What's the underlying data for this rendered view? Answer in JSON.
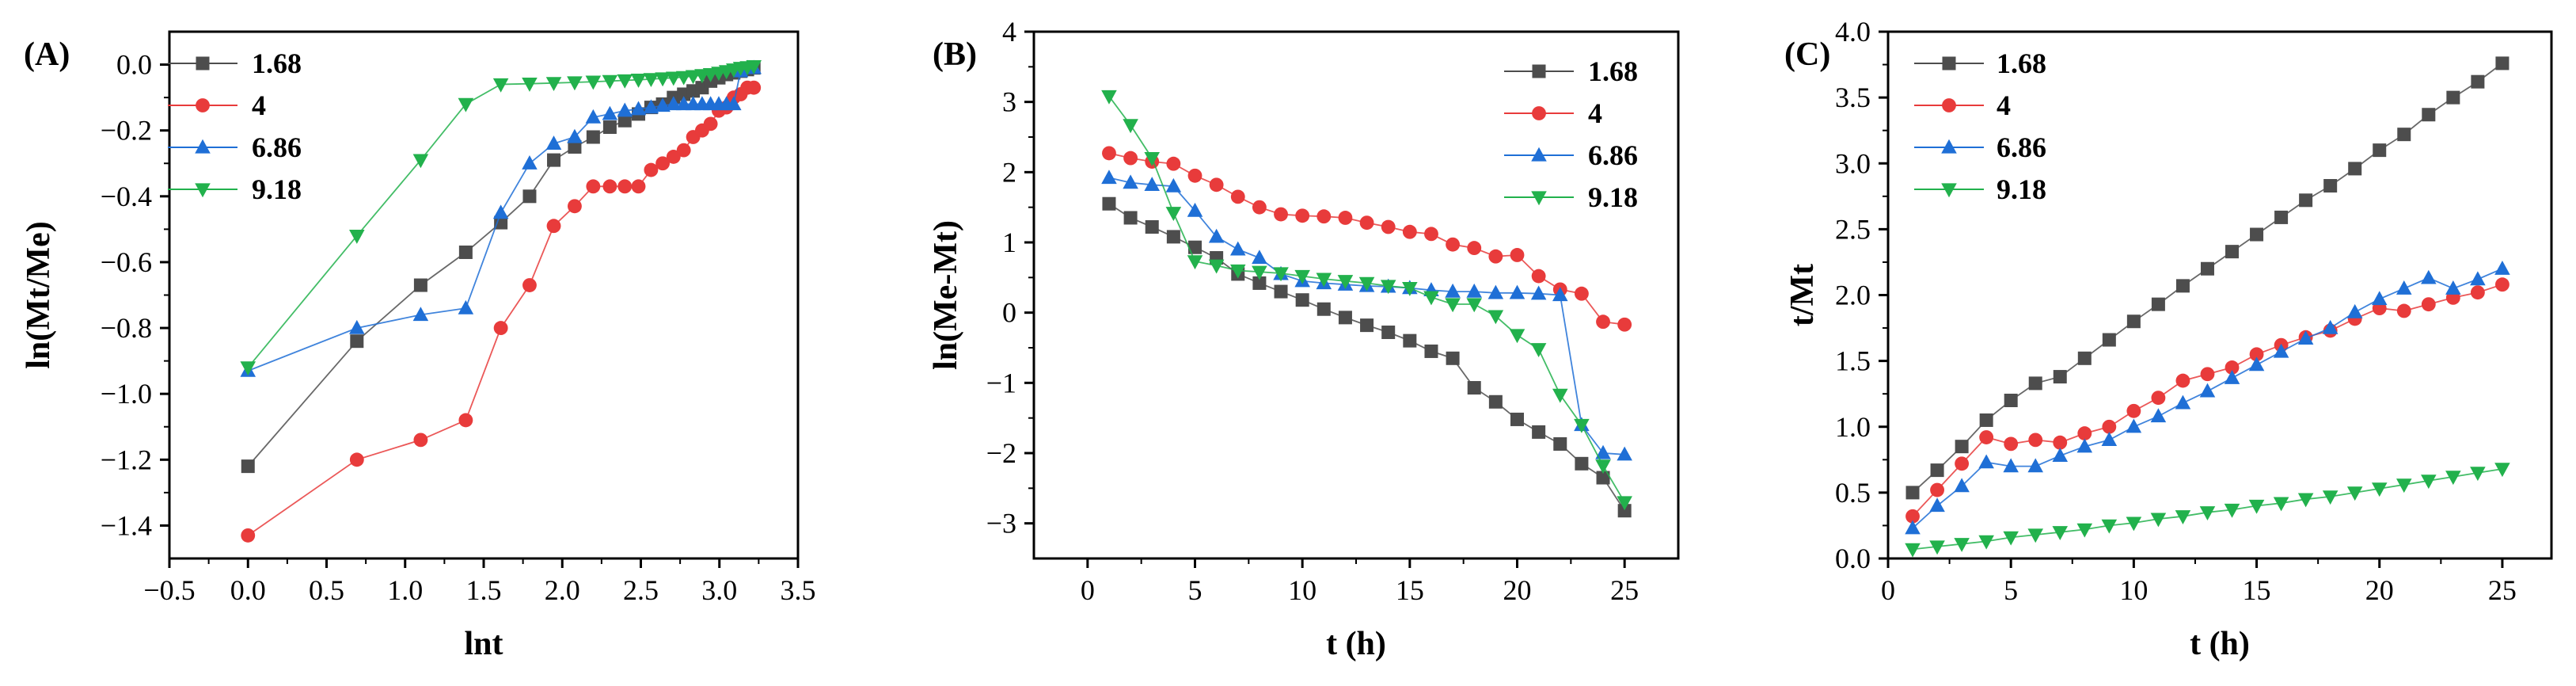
{
  "colors": {
    "1.68": "#4d4d4d",
    "4": "#e83b3b",
    "6.86": "#1f6fd6",
    "9.18": "#22b14c"
  },
  "chart_data": [
    {
      "type": "line",
      "panel_label": "(A)",
      "xlabel": "lnt",
      "ylabel": "ln(Mt/Me)",
      "xlim": [
        -0.5,
        3.5
      ],
      "ylim": [
        -1.5,
        0.1
      ],
      "xticks": [
        -0.5,
        0.0,
        0.5,
        1.0,
        1.5,
        2.0,
        2.5,
        3.0,
        3.5
      ],
      "xtick_labels": [
        "−0.5",
        "0.0",
        "0.5",
        "1.0",
        "1.5",
        "2.0",
        "2.5",
        "3.0",
        "3.5"
      ],
      "yticks": [
        -1.4,
        -1.2,
        -1.0,
        -0.8,
        -0.6,
        -0.4,
        -0.2,
        0.0
      ],
      "ytick_labels": [
        "−1.4",
        "−1.2",
        "−1.0",
        "−0.8",
        "−0.6",
        "−0.4",
        "−0.2",
        "0.0"
      ],
      "legend_position": "top-left",
      "series": [
        {
          "name": "1.68",
          "marker": "square",
          "color": "#4d4d4d",
          "x": [
            0.0,
            0.693,
            1.099,
            1.386,
            1.609,
            1.792,
            1.946,
            2.079,
            2.197,
            2.303,
            2.398,
            2.485,
            2.565,
            2.639,
            2.708,
            2.773,
            2.833,
            2.89,
            2.944,
            2.996,
            3.045,
            3.091,
            3.135,
            3.178,
            3.219
          ],
          "y": [
            -1.22,
            -0.84,
            -0.67,
            -0.57,
            -0.48,
            -0.4,
            -0.29,
            -0.25,
            -0.22,
            -0.19,
            -0.17,
            -0.15,
            -0.13,
            -0.12,
            -0.1,
            -0.09,
            -0.08,
            -0.07,
            -0.05,
            -0.04,
            -0.03,
            -0.025,
            -0.02,
            -0.015,
            -0.01
          ]
        },
        {
          "name": "4",
          "marker": "circle",
          "color": "#e83b3b",
          "x": [
            0.0,
            0.693,
            1.099,
            1.386,
            1.609,
            1.792,
            1.946,
            2.079,
            2.197,
            2.303,
            2.398,
            2.485,
            2.565,
            2.639,
            2.708,
            2.773,
            2.833,
            2.89,
            2.944,
            2.996,
            3.045,
            3.091,
            3.135,
            3.178,
            3.219
          ],
          "y": [
            -1.43,
            -1.2,
            -1.14,
            -1.08,
            -0.8,
            -0.67,
            -0.49,
            -0.43,
            -0.37,
            -0.37,
            -0.37,
            -0.37,
            -0.32,
            -0.3,
            -0.28,
            -0.26,
            -0.22,
            -0.2,
            -0.18,
            -0.14,
            -0.13,
            -0.1,
            -0.09,
            -0.07,
            -0.07
          ]
        },
        {
          "name": "6.86",
          "marker": "triangle-up",
          "color": "#1f6fd6",
          "x": [
            0.0,
            0.693,
            1.099,
            1.386,
            1.609,
            1.792,
            1.946,
            2.079,
            2.197,
            2.303,
            2.398,
            2.485,
            2.565,
            2.639,
            2.708,
            2.773,
            2.833,
            2.89,
            2.944,
            2.996,
            3.045,
            3.091,
            3.135,
            3.178,
            3.219
          ],
          "y": [
            -0.93,
            -0.8,
            -0.76,
            -0.74,
            -0.45,
            -0.3,
            -0.24,
            -0.22,
            -0.16,
            -0.15,
            -0.14,
            -0.135,
            -0.13,
            -0.125,
            -0.12,
            -0.12,
            -0.12,
            -0.12,
            -0.12,
            -0.12,
            -0.12,
            -0.12,
            -0.02,
            -0.01,
            -0.01
          ]
        },
        {
          "name": "9.18",
          "marker": "triangle-down",
          "color": "#22b14c",
          "x": [
            0.0,
            0.693,
            1.099,
            1.386,
            1.609,
            1.792,
            1.946,
            2.079,
            2.197,
            2.303,
            2.398,
            2.485,
            2.565,
            2.639,
            2.708,
            2.773,
            2.833,
            2.89,
            2.944,
            2.996,
            3.045,
            3.091,
            3.135,
            3.178,
            3.219
          ],
          "y": [
            -0.92,
            -0.52,
            -0.29,
            -0.12,
            -0.06,
            -0.058,
            -0.056,
            -0.054,
            -0.052,
            -0.05,
            -0.048,
            -0.046,
            -0.044,
            -0.042,
            -0.04,
            -0.038,
            -0.035,
            -0.032,
            -0.029,
            -0.025,
            -0.02,
            -0.015,
            -0.01,
            -0.008,
            -0.005
          ]
        }
      ]
    },
    {
      "type": "line",
      "panel_label": "(B)",
      "xlabel": "t (h)",
      "ylabel": "ln(Me-Mt)",
      "xlim": [
        -2.5,
        27.5
      ],
      "ylim": [
        -3.5,
        4
      ],
      "xticks": [
        0,
        5,
        10,
        15,
        20,
        25
      ],
      "xtick_labels": [
        "0",
        "5",
        "10",
        "15",
        "20",
        "25"
      ],
      "yticks": [
        -3,
        -2,
        -1,
        0,
        1,
        2,
        3,
        4
      ],
      "ytick_labels": [
        "−3",
        "−2",
        "−1",
        "0",
        "1",
        "2",
        "3",
        "4"
      ],
      "legend_position": "top-right",
      "series": [
        {
          "name": "1.68",
          "marker": "square",
          "color": "#4d4d4d",
          "x": [
            1,
            2,
            3,
            4,
            5,
            6,
            7,
            8,
            9,
            10,
            11,
            12,
            13,
            14,
            15,
            16,
            17,
            18,
            19,
            20,
            21,
            22,
            23,
            24,
            25
          ],
          "y": [
            1.55,
            1.35,
            1.22,
            1.08,
            0.93,
            0.78,
            0.55,
            0.42,
            0.3,
            0.18,
            0.05,
            -0.07,
            -0.18,
            -0.28,
            -0.4,
            -0.55,
            -0.65,
            -1.07,
            -1.27,
            -1.52,
            -1.7,
            -1.87,
            -2.15,
            -2.35,
            -2.82
          ]
        },
        {
          "name": "4",
          "marker": "circle",
          "color": "#e83b3b",
          "x": [
            1,
            2,
            3,
            4,
            5,
            6,
            7,
            8,
            9,
            10,
            11,
            12,
            13,
            14,
            15,
            16,
            17,
            18,
            19,
            20,
            21,
            22,
            23,
            24,
            25
          ],
          "y": [
            2.27,
            2.2,
            2.15,
            2.12,
            1.95,
            1.82,
            1.65,
            1.5,
            1.4,
            1.38,
            1.37,
            1.35,
            1.28,
            1.22,
            1.15,
            1.12,
            0.97,
            0.92,
            0.8,
            0.82,
            0.52,
            0.33,
            0.27,
            -0.13,
            -0.17
          ]
        },
        {
          "name": "6.86",
          "marker": "triangle-up",
          "color": "#1f6fd6",
          "x": [
            1,
            2,
            3,
            4,
            5,
            6,
            7,
            8,
            9,
            10,
            11,
            12,
            13,
            14,
            15,
            16,
            17,
            18,
            19,
            20,
            21,
            22,
            23,
            24,
            25
          ],
          "y": [
            1.92,
            1.85,
            1.82,
            1.8,
            1.45,
            1.08,
            0.9,
            0.78,
            0.55,
            0.45,
            0.42,
            0.4,
            0.38,
            0.37,
            0.35,
            0.32,
            0.3,
            0.3,
            0.28,
            0.28,
            0.27,
            0.25,
            -1.6,
            -2.0,
            -2.02
          ]
        },
        {
          "name": "9.18",
          "marker": "triangle-down",
          "color": "#22b14c",
          "x": [
            1,
            2,
            3,
            4,
            5,
            6,
            7,
            8,
            9,
            10,
            11,
            12,
            13,
            14,
            15,
            16,
            17,
            18,
            19,
            20,
            21,
            22,
            23,
            24,
            25
          ],
          "y": [
            3.08,
            2.67,
            2.2,
            1.42,
            0.73,
            0.67,
            0.6,
            0.58,
            0.56,
            0.52,
            0.48,
            0.45,
            0.42,
            0.38,
            0.35,
            0.22,
            0.12,
            0.12,
            -0.05,
            -0.32,
            -0.52,
            -1.17,
            -1.6,
            -2.18,
            -2.7
          ]
        }
      ]
    },
    {
      "type": "line",
      "panel_label": "(C)",
      "xlabel": "t (h)",
      "ylabel": "t/Mt",
      "xlim": [
        0,
        27
      ],
      "ylim": [
        0,
        4
      ],
      "xticks": [
        0,
        5,
        10,
        15,
        20,
        25
      ],
      "xtick_labels": [
        "0",
        "5",
        "10",
        "15",
        "20",
        "25"
      ],
      "yticks": [
        0.0,
        0.5,
        1.0,
        1.5,
        2.0,
        2.5,
        3.0,
        3.5,
        4.0
      ],
      "ytick_labels": [
        "0.0",
        "0.5",
        "1.0",
        "1.5",
        "2.0",
        "2.5",
        "3.0",
        "3.5",
        "4.0"
      ],
      "legend_position": "top-left",
      "series": [
        {
          "name": "1.68",
          "marker": "square",
          "color": "#4d4d4d",
          "x": [
            1,
            2,
            3,
            4,
            5,
            6,
            7,
            8,
            9,
            10,
            11,
            12,
            13,
            14,
            15,
            16,
            17,
            18,
            19,
            20,
            21,
            22,
            23,
            24,
            25
          ],
          "y": [
            0.5,
            0.67,
            0.85,
            1.05,
            1.2,
            1.33,
            1.38,
            1.52,
            1.66,
            1.8,
            1.93,
            2.07,
            2.2,
            2.33,
            2.46,
            2.59,
            2.72,
            2.83,
            2.96,
            3.1,
            3.22,
            3.37,
            3.5,
            3.62,
            3.76
          ]
        },
        {
          "name": "4",
          "marker": "circle",
          "color": "#e83b3b",
          "x": [
            1,
            2,
            3,
            4,
            5,
            6,
            7,
            8,
            9,
            10,
            11,
            12,
            13,
            14,
            15,
            16,
            17,
            18,
            19,
            20,
            21,
            22,
            23,
            24,
            25
          ],
          "y": [
            0.32,
            0.52,
            0.72,
            0.92,
            0.87,
            0.9,
            0.88,
            0.95,
            1.0,
            1.12,
            1.22,
            1.35,
            1.4,
            1.45,
            1.55,
            1.62,
            1.68,
            1.73,
            1.82,
            1.9,
            1.88,
            1.93,
            1.98,
            2.02,
            2.08
          ]
        },
        {
          "name": "6.86",
          "marker": "triangle-up",
          "color": "#1f6fd6",
          "x": [
            1,
            2,
            3,
            4,
            5,
            6,
            7,
            8,
            9,
            10,
            11,
            12,
            13,
            14,
            15,
            16,
            17,
            18,
            19,
            20,
            21,
            22,
            23,
            24,
            25
          ],
          "y": [
            0.23,
            0.4,
            0.55,
            0.73,
            0.7,
            0.7,
            0.78,
            0.85,
            0.9,
            1.0,
            1.08,
            1.18,
            1.27,
            1.37,
            1.47,
            1.57,
            1.67,
            1.75,
            1.87,
            1.97,
            2.05,
            2.13,
            2.05,
            2.12,
            2.2
          ]
        },
        {
          "name": "9.18",
          "marker": "triangle-down",
          "color": "#22b14c",
          "x": [
            1,
            2,
            3,
            4,
            5,
            6,
            7,
            8,
            9,
            10,
            11,
            12,
            13,
            14,
            15,
            16,
            17,
            18,
            19,
            20,
            21,
            22,
            23,
            24,
            25
          ],
          "y": [
            0.07,
            0.09,
            0.11,
            0.13,
            0.16,
            0.18,
            0.2,
            0.22,
            0.25,
            0.27,
            0.3,
            0.32,
            0.35,
            0.37,
            0.4,
            0.42,
            0.45,
            0.47,
            0.5,
            0.53,
            0.56,
            0.59,
            0.62,
            0.65,
            0.68
          ]
        }
      ]
    }
  ]
}
